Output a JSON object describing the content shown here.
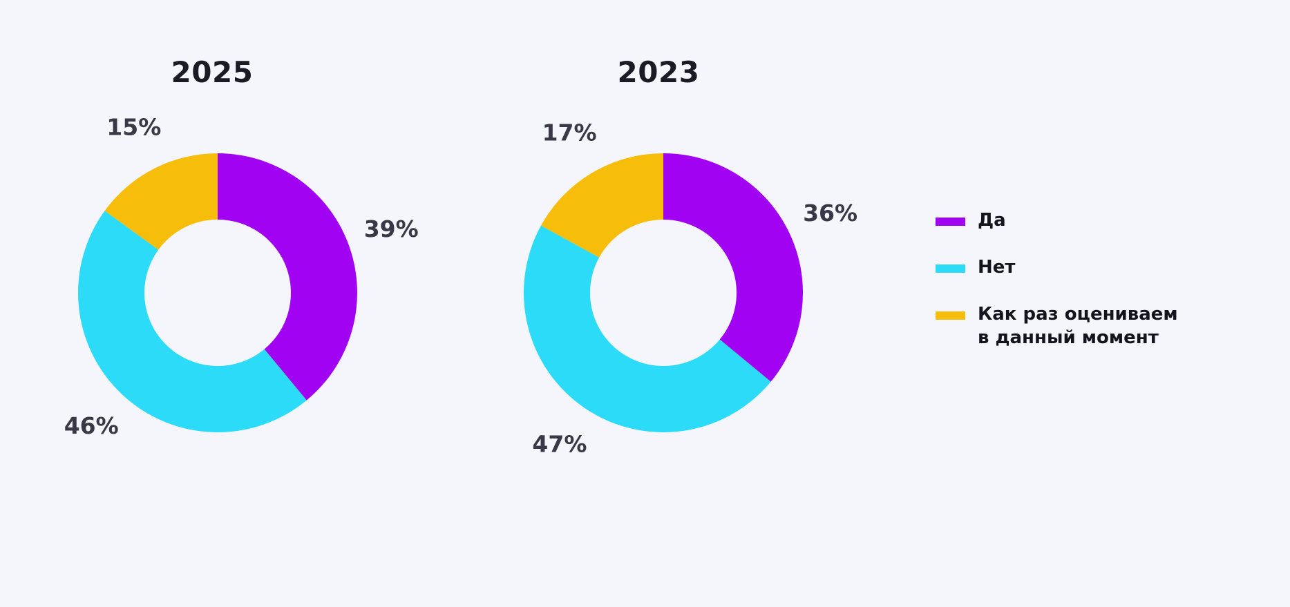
{
  "colors": {
    "yes": "#a103f2",
    "no": "#2cdbf8",
    "evaluating": "#f6bd0b",
    "background": "#f5f6fb"
  },
  "legend": {
    "items": [
      {
        "key": "yes",
        "label": "Да"
      },
      {
        "key": "no",
        "label": "Нет"
      },
      {
        "key": "evaluating",
        "label": "Как раз оцениваем\nв данный момент"
      }
    ]
  },
  "chart_data": [
    {
      "type": "pie",
      "donut": true,
      "title": "2025",
      "categories": [
        "Да",
        "Нет",
        "Как раз оцениваем в данный момент"
      ],
      "values": [
        39,
        46,
        15
      ],
      "labels": [
        "39%",
        "46%",
        "15%"
      ],
      "legend_position": "right"
    },
    {
      "type": "pie",
      "donut": true,
      "title": "2023",
      "categories": [
        "Да",
        "Нет",
        "Как раз оцениваем в данный момент"
      ],
      "values": [
        36,
        47,
        17
      ],
      "labels": [
        "36%",
        "47%",
        "17%"
      ],
      "legend_position": "right"
    }
  ]
}
